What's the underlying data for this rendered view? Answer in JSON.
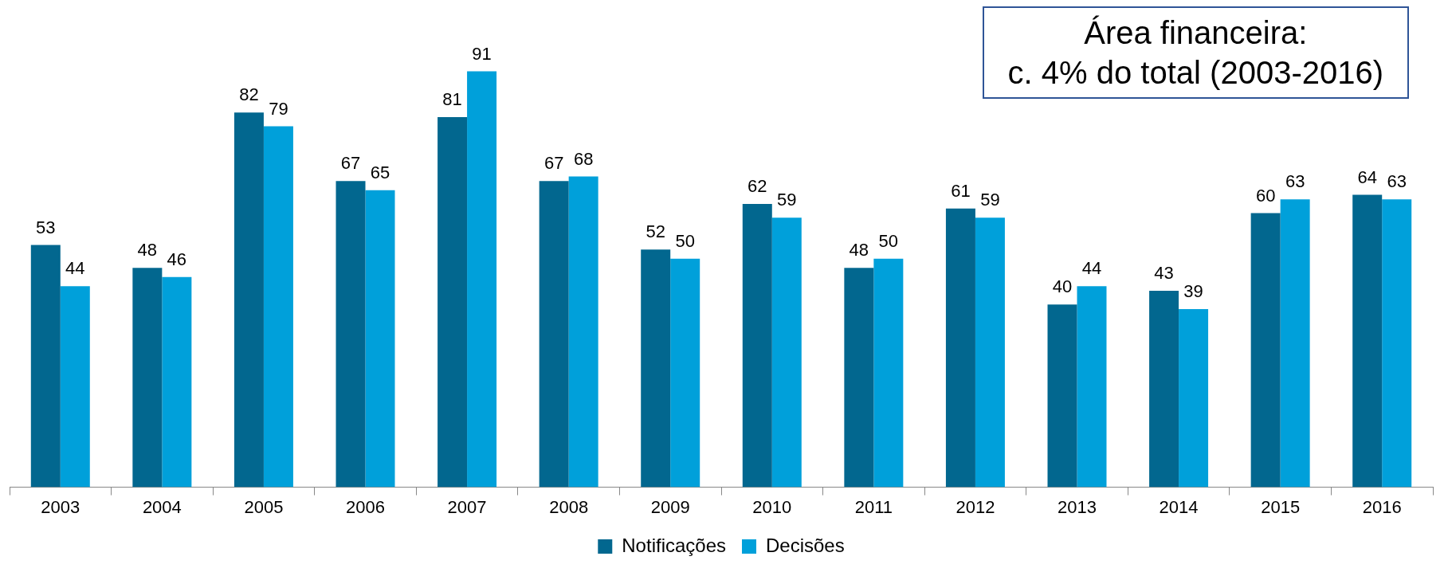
{
  "chart_data": {
    "type": "bar",
    "categories": [
      "2003",
      "2004",
      "2005",
      "2006",
      "2007",
      "2008",
      "2009",
      "2010",
      "2011",
      "2012",
      "2013",
      "2014",
      "2015",
      "2016"
    ],
    "series": [
      {
        "name": "Notificações",
        "color": "#02678f",
        "values": [
          53,
          48,
          82,
          67,
          81,
          67,
          52,
          62,
          48,
          61,
          40,
          43,
          60,
          64
        ]
      },
      {
        "name": "Decisões",
        "color": "#00a0da",
        "values": [
          44,
          46,
          79,
          65,
          91,
          68,
          50,
          59,
          50,
          59,
          44,
          39,
          63,
          63
        ]
      }
    ],
    "annotations": [
      "Área financeira:",
      "c. 4% do total (2003-2016)"
    ],
    "data_labels": true,
    "legend": "bottom",
    "tick_labels": "x",
    "grid": false
  }
}
